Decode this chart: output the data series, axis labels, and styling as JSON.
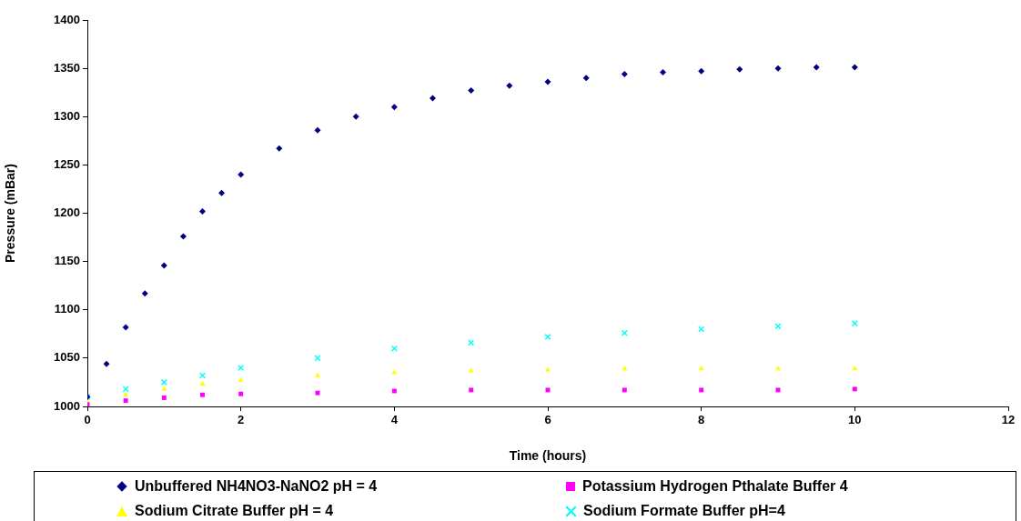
{
  "chart_data": {
    "type": "scatter",
    "xlabel": "Time (hours)",
    "ylabel": "Pressure (mBar)",
    "xlim": [
      0,
      12
    ],
    "xticks": [
      0,
      2,
      4,
      6,
      8,
      10,
      12
    ],
    "ylim": [
      1000,
      1400
    ],
    "yticks": [
      1000,
      1050,
      1100,
      1150,
      1200,
      1250,
      1300,
      1350,
      1400
    ],
    "grid": false,
    "legend": "bottom",
    "series": [
      {
        "name": "Unbuffered NH4NO3-NaNO2 pH = 4",
        "color": "#000080",
        "marker": "diamond",
        "x": [
          0,
          0.25,
          0.5,
          0.75,
          1,
          1.25,
          1.5,
          1.75,
          2,
          2.5,
          3,
          3.5,
          4,
          4.5,
          5,
          5.5,
          6,
          6.5,
          7,
          7.5,
          8,
          8.5,
          9,
          9.5,
          10
        ],
        "values": [
          1010,
          1044,
          1082,
          1117,
          1146,
          1176,
          1202,
          1221,
          1240,
          1267,
          1286,
          1300,
          1310,
          1319,
          1327,
          1332,
          1336,
          1340,
          1344,
          1346,
          1347,
          1349,
          1350,
          1351,
          1351
        ]
      },
      {
        "name": "Potassium Hydrogen Pthalate Buffer 4",
        "color": "#ff00ff",
        "marker": "square",
        "x": [
          0,
          0.5,
          1,
          1.5,
          2,
          3,
          4,
          5,
          6,
          7,
          8,
          9,
          10
        ],
        "values": [
          1002,
          1006,
          1009,
          1012,
          1013,
          1014,
          1016,
          1017,
          1017,
          1017,
          1017,
          1017,
          1018
        ]
      },
      {
        "name": "Sodium Citrate Buffer pH = 4",
        "color": "#ffff00",
        "marker": "triangle",
        "x": [
          0,
          0.5,
          1,
          1.5,
          2,
          3,
          4,
          5,
          6,
          7,
          8,
          9,
          10
        ],
        "values": [
          1005,
          1012,
          1018,
          1023,
          1027,
          1032,
          1035,
          1037,
          1038,
          1039,
          1039,
          1039,
          1039
        ]
      },
      {
        "name": "Sodium Formate Buffer pH=4",
        "color": "#00ffff",
        "marker": "cross",
        "x": [
          0,
          0.5,
          1,
          1.5,
          2,
          3,
          4,
          5,
          6,
          7,
          8,
          9,
          10
        ],
        "values": [
          1010,
          1018,
          1025,
          1032,
          1040,
          1050,
          1060,
          1066,
          1072,
          1076,
          1080,
          1083,
          1086
        ]
      }
    ]
  }
}
